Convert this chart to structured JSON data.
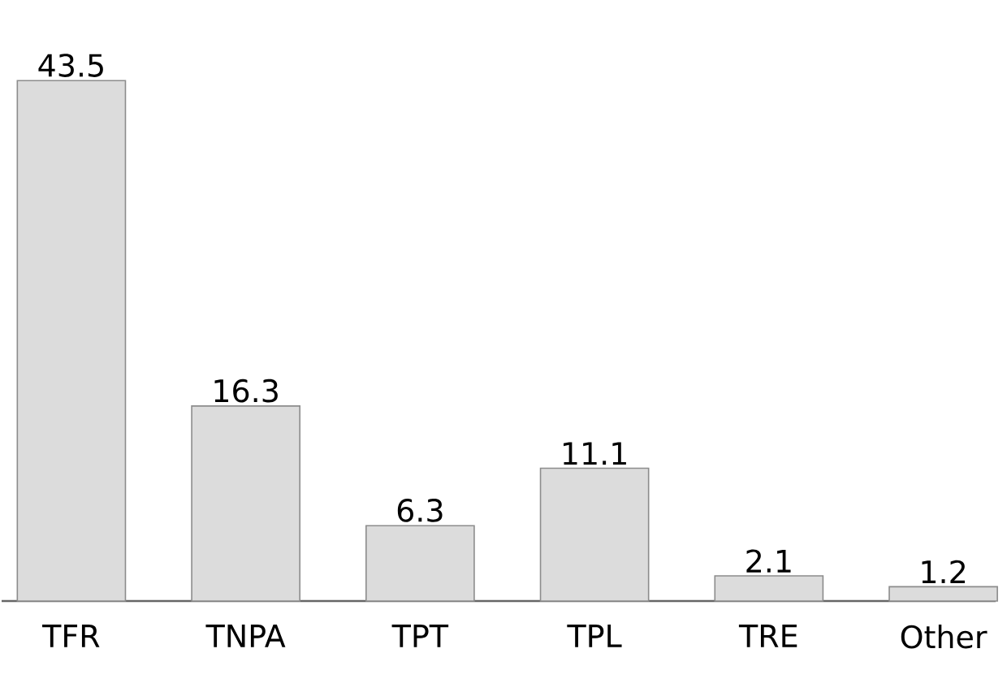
{
  "chart_data": {
    "type": "bar",
    "categories": [
      "TFR",
      "TNPA",
      "TPT",
      "TPL",
      "TRE",
      "Other"
    ],
    "values": [
      43.5,
      16.3,
      6.3,
      11.1,
      2.1,
      1.2
    ],
    "color": "#dcdcdc",
    "data_labels": true
  }
}
